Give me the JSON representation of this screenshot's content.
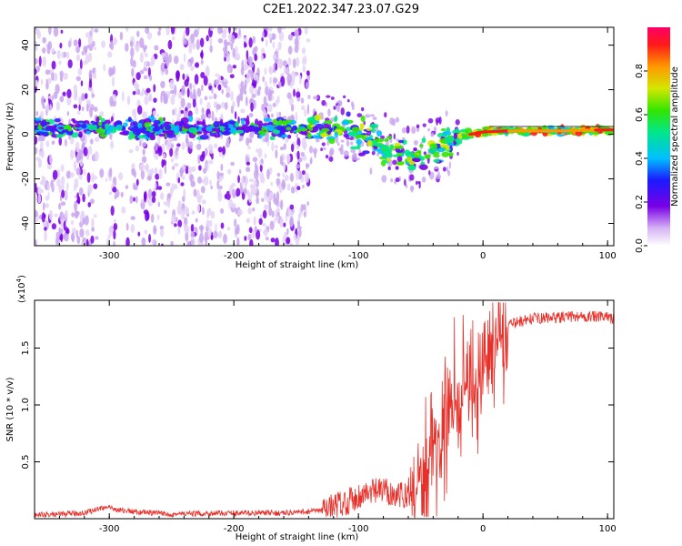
{
  "title": "C2E1.2022.347.23.07.G29",
  "colors": {
    "snr_line": "#e8302a",
    "axis": "#000000"
  },
  "chart_data": [
    {
      "type": "heatmap",
      "xlabel": "Height of straight line (km)",
      "ylabel": "Frequency (Hz)",
      "xlim": [
        -360,
        105
      ],
      "ylim": [
        -50,
        48
      ],
      "x_ticks": [
        -300,
        -200,
        -100,
        0,
        100
      ],
      "y_ticks": [
        -40,
        -20,
        0,
        20,
        40
      ],
      "colorbar": {
        "label": "Normalized spectral amplitude",
        "ticks": [
          0.0,
          0.2,
          0.4,
          0.6,
          0.8
        ],
        "range": [
          0,
          1
        ]
      },
      "ridge": [
        {
          "x": -355,
          "freq": 3
        },
        {
          "x": -300,
          "freq": 3
        },
        {
          "x": -250,
          "freq": 2.5
        },
        {
          "x": -200,
          "freq": 2.5
        },
        {
          "x": -140,
          "freq": 2.5
        },
        {
          "x": -110,
          "freq": 2
        },
        {
          "x": -90,
          "freq": -3
        },
        {
          "x": -70,
          "freq": -8
        },
        {
          "x": -55,
          "freq": -12
        },
        {
          "x": -40,
          "freq": -7
        },
        {
          "x": -25,
          "freq": -2
        },
        {
          "x": -10,
          "freq": 0
        },
        {
          "x": 0,
          "freq": 1
        },
        {
          "x": 20,
          "freq": 1.5
        },
        {
          "x": 60,
          "freq": 1.5
        },
        {
          "x": 100,
          "freq": 2
        }
      ]
    },
    {
      "type": "line",
      "xlabel": "Height of straight line (km)",
      "ylabel": "SNR (10 * v/v)",
      "scale_label": "(x10",
      "scale_exp": "4",
      "xlim": [
        -360,
        105
      ],
      "ylim": [
        0,
        1.92
      ],
      "x_ticks": [
        -300,
        -200,
        -100,
        0,
        100
      ],
      "y_ticks": [
        0.5,
        1.0,
        1.5
      ],
      "y_tick_labels": [
        "0.5",
        "1.0",
        "1.5"
      ],
      "series": [
        {
          "x": [
            -360,
            -320,
            -305,
            -280,
            -250,
            -200,
            -160,
            -130,
            -110,
            -95,
            -80,
            -65,
            -55,
            -45,
            -35,
            -25,
            -15,
            -5,
            5,
            15,
            25,
            40,
            60,
            80,
            100,
            105
          ],
          "y": [
            0.03,
            0.05,
            0.1,
            0.06,
            0.04,
            0.05,
            0.05,
            0.07,
            0.15,
            0.22,
            0.25,
            0.2,
            0.25,
            0.45,
            0.75,
            1.0,
            1.1,
            1.2,
            1.45,
            1.65,
            1.72,
            1.76,
            1.77,
            1.78,
            1.77,
            1.76
          ]
        }
      ]
    }
  ]
}
